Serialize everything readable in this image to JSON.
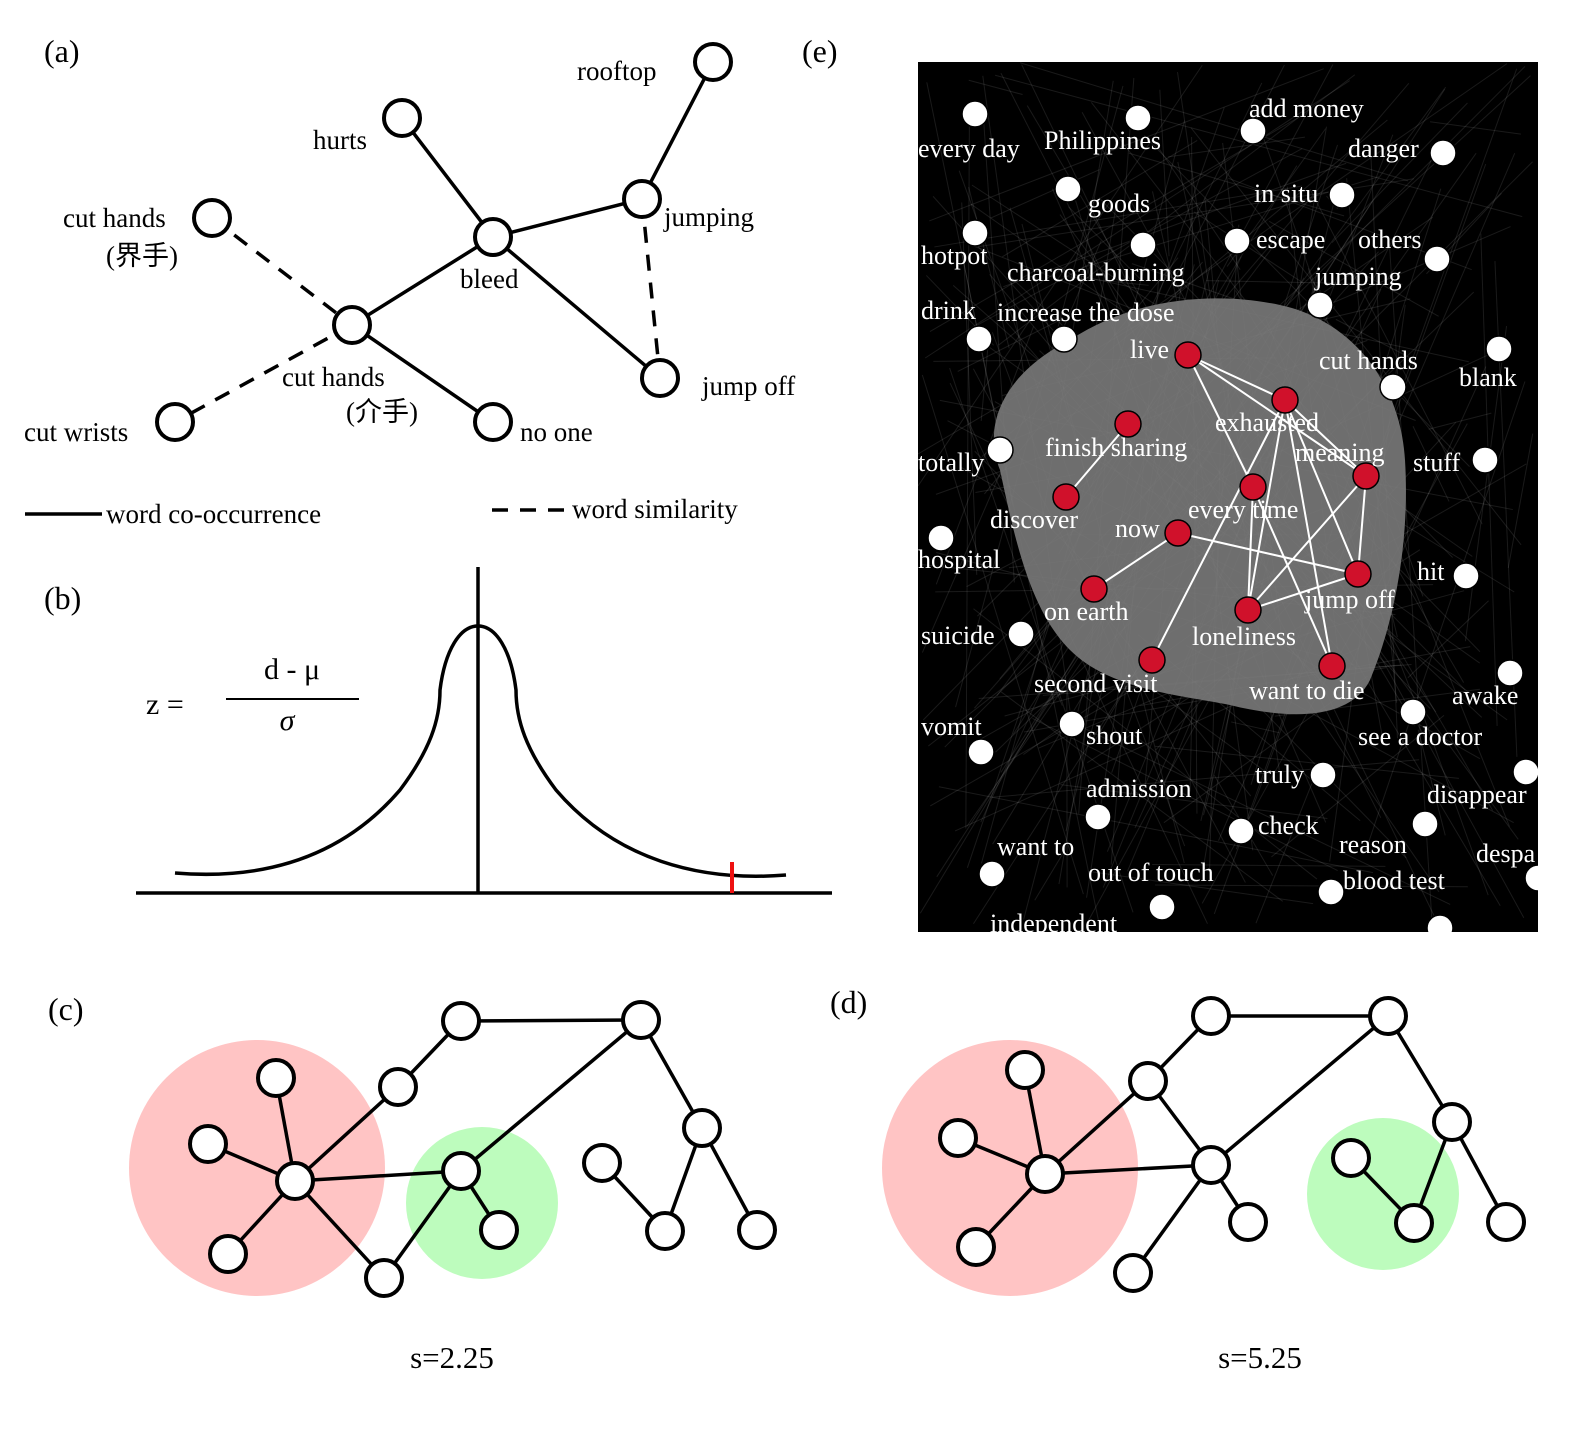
{
  "panel_labels": {
    "a": "(a)",
    "b": "(b)",
    "c": "(c)",
    "d": "(d)",
    "e": "(e)"
  },
  "panel_a": {
    "words": {
      "rooftop": "rooftop",
      "hurts": "hurts",
      "cut_hands_1": "cut hands",
      "cut_hands_1_zh": "(界手)",
      "jumping": "jumping",
      "bleed": "bleed",
      "cut_hands_2": "cut hands",
      "cut_hands_2_zh": "(介手)",
      "jump_off": "jump off",
      "cut_wrists": "cut wrists",
      "no_one": "no one"
    },
    "legend": {
      "cooccurrence": "word co-occurrence",
      "similarity": "word similarity"
    }
  },
  "panel_b": {
    "formula": {
      "lhs": "z =",
      "numerator": "d - μ",
      "denominator": "σ"
    }
  },
  "panel_c": {
    "caption": "s=2.25"
  },
  "panel_d": {
    "caption": "s=5.25"
  },
  "panel_e": {
    "colors": {
      "background": "#000000",
      "community": "#7a7a7a",
      "highlight_node": "#d0112b",
      "node": "#ffffff"
    },
    "highlight_words": [
      "live",
      "exhausted",
      "finish sharing",
      "meaning",
      "discover",
      "every time",
      "now",
      "on earth",
      "jump off",
      "loneliness",
      "second visit",
      "want to die"
    ],
    "other_words": [
      "every day",
      "Philippines",
      "add money",
      "danger",
      "goods",
      "in situ",
      "hotpot",
      "escape",
      "others",
      "charcoal-burning",
      "jumping",
      "drink",
      "increase the dose",
      "cut hands",
      "blank",
      "totally",
      "stuff",
      "hospital",
      "hit",
      "suicide",
      "awake",
      "vomit",
      "shout",
      "see a doctor",
      "truly",
      "admission",
      "disappear",
      "check",
      "want to",
      "reason",
      "despa",
      "out of touch",
      "blood test",
      "independent"
    ]
  }
}
